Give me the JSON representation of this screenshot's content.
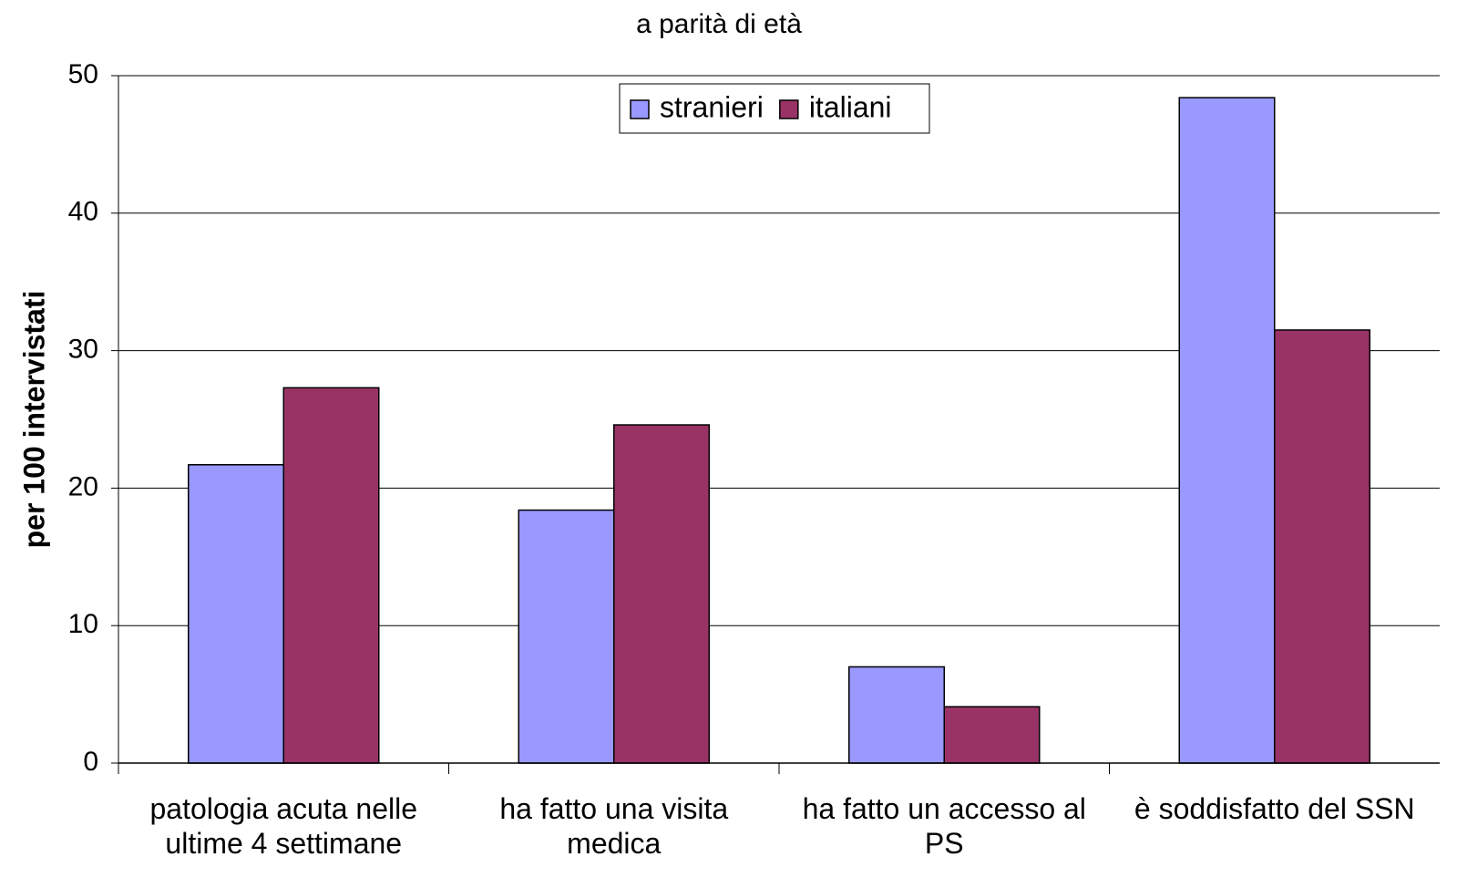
{
  "chart_data": {
    "type": "bar",
    "title": "a parità di età",
    "y_label": "per 100 intervistati",
    "categories": [
      "patologia acuta nelle ultime 4 settimane",
      "ha fatto una visita medica",
      "ha fatto un accesso al PS",
      "è soddisfatto del SSN"
    ],
    "series": [
      {
        "name": "stranieri",
        "color": "#9999ff",
        "values": [
          21.7,
          18.4,
          7.0,
          48.4
        ]
      },
      {
        "name": "italiani",
        "color": "#993366",
        "values": [
          27.3,
          24.6,
          4.1,
          31.5
        ]
      }
    ],
    "ylim": [
      0,
      50
    ],
    "yticks": [
      0,
      10,
      20,
      30,
      40,
      50
    ],
    "grid": true,
    "legend": "top"
  }
}
